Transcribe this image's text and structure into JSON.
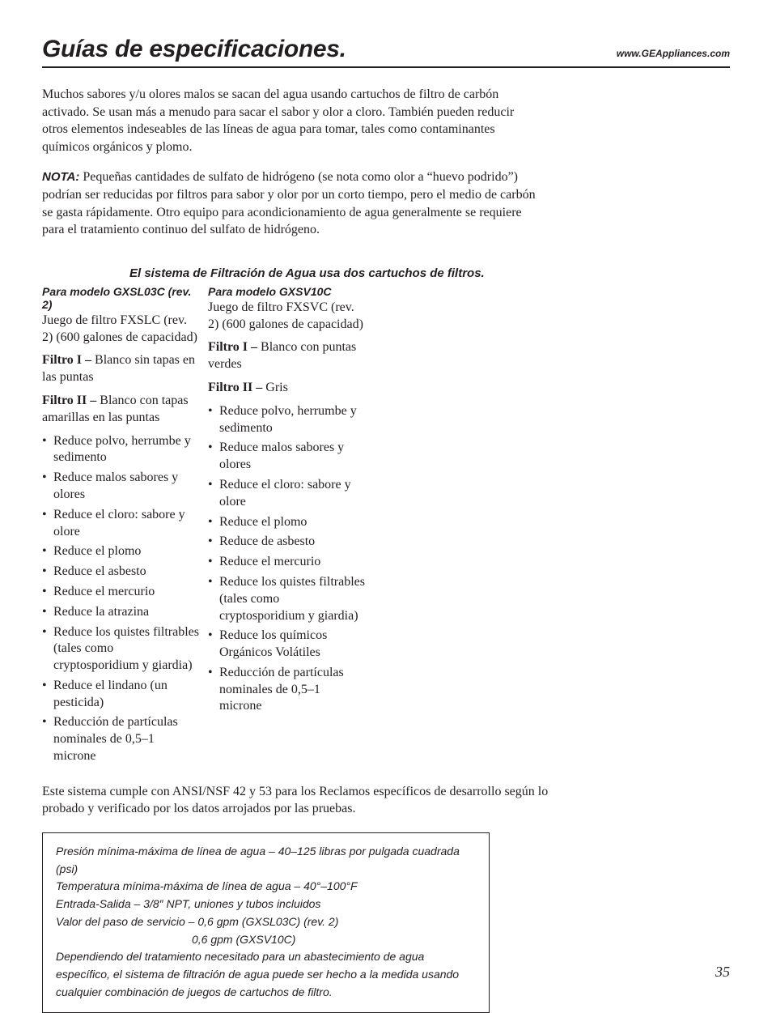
{
  "header": {
    "title": "Guías de especificaciones.",
    "url": "www.GEAppliances.com"
  },
  "intro": {
    "p1": "Muchos sabores y/u olores malos se sacan del agua usando cartuchos de filtro de carbón activado. Se usan más a menudo para sacar el sabor y olor a cloro. También pueden reducir otros elementos indeseables de las líneas de agua para tomar, tales como contaminantes químicos orgánicos y plomo.",
    "nota_label": "NOTA:",
    "nota_text": " Pequeñas cantidades de sulfato de hidrógeno (se nota como olor a “huevo podrido”) podrían ser reducidas por filtros para sabor y olor por un corto tiempo, pero el medio de carbón se gasta rápidamente. Otro equipo para acondicionamiento de agua generalmente se requiere para el tratamiento continuo del sulfato de hidrógeno."
  },
  "system_title": "El sistema de Filtración de Agua usa dos cartuchos de filtros.",
  "left": {
    "heading": "Para modelo GXSL03C (rev. 2)",
    "kit": "Juego de filtro FXSLC (rev. 2) (600 galones de capacidad)",
    "f1_label": "Filtro I – ",
    "f1_text": "Blanco sin tapas en las puntas",
    "f2_label": "Filtro II – ",
    "f2_text": "Blanco con tapas amarillas en las puntas",
    "bullets": [
      "Reduce polvo, herrumbe y sedimento",
      "Reduce malos sabores y olores",
      "Reduce el cloro: sabore y olore",
      "Reduce el plomo",
      "Reduce el asbesto",
      "Reduce el mercurio",
      "Reduce la atrazina",
      "Reduce los quistes filtrables (tales como cryptosporidium y giardia)",
      "Reduce el lindano (un pesticida)",
      "Reducción de partículas nominales de 0,5–1 microne"
    ]
  },
  "right": {
    "heading": "Para modelo GXSV10C",
    "kit": "Juego de filtro FXSVC (rev. 2) (600 galones de capacidad)",
    "f1_label": "Filtro I – ",
    "f1_text": "Blanco con puntas verdes",
    "f2_label": "Filtro II – ",
    "f2_text": "Gris",
    "bullets": [
      "Reduce polvo, herrumbe y sedimento",
      "Reduce malos sabores y olores",
      "Reduce el cloro: sabore y olore",
      "Reduce el plomo",
      "Reduce de asbesto",
      "Reduce el mercurio",
      "Reduce los quistes filtrables (tales como cryptosporidium y giardia)",
      "Reduce los químicos Orgánicos Volátiles",
      "Reducción de partículas nominales de 0,5–1 microne"
    ]
  },
  "compliance": "Este sistema cumple con ANSI/NSF 42 y 53 para los Reclamos específicos de desarrollo según lo probado y verificado por los datos arrojados por las pruebas.",
  "specbox": {
    "l1": "Presión mínima-máxima de línea de agua – 40–125 libras por pulgada cuadrada (psi)",
    "l2": "Temperatura mínima-máxima de línea de agua – 40°–100°F",
    "l3": "Entrada-Salida – 3/8″ NPT, uniones y tubos incluidos",
    "l4": "Valor del paso de servicio – 0,6 gpm (GXSL03C) (rev. 2)",
    "l4b": "0,6 gpm (GXSV10C)",
    "l5": "Dependiendo del tratamiento necesitado para un abastecimiento de agua específico, el sistema de filtración de agua puede ser hecho a la medida usando cualquier combinación de juegos de cartuchos de filtro."
  },
  "page_number": "35"
}
